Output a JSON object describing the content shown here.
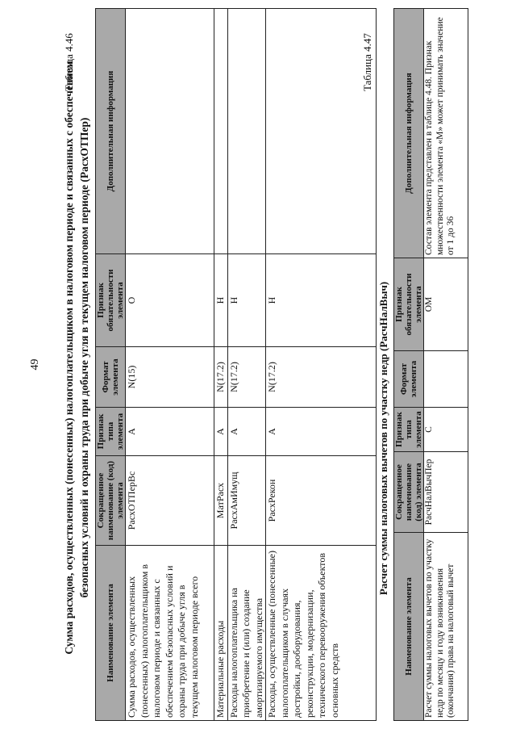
{
  "page_number": "49",
  "table1": {
    "label": "Таблица 4.46",
    "title": "Сумма расходов, осуществленных (понесенных) налогоплательщиком в налоговом периоде и связанных с обеспечением безопасных условий и охраны труда при добыче угля в текущем налоговом периоде (РасхОТПер)",
    "headers": [
      "Наименование элемента",
      "Сокращенное наименование (код) элемента",
      "Признак типа элемента",
      "Формат элемента",
      "Признак обязательности элемента",
      "Дополнительная информация"
    ],
    "rows": [
      [
        "Сумма расходов, осуществленных (понесенных) налогоплательщиком в налоговом периоде и связанных с обеспечением безопасных условий и охраны труда при добыче угля в текущем налоговом периоде всего",
        "РасхОТПерВс",
        "А",
        "N(15)",
        "О",
        ""
      ],
      [
        "Материальные расходы",
        "МатРасх",
        "А",
        "N(17.2)",
        "Н",
        ""
      ],
      [
        "Расходы налогоплательщика на приобретение и (или) создание амортизируемого имущества",
        "РасхАмИмущ",
        "А",
        "N(17.2)",
        "Н",
        ""
      ],
      [
        "Расходы, осуществленные (понесенные) налогоплательщиком в случаях достройки, дооборудования, реконструкции, модернизации, технического перевооружения объектов основных средств",
        "РасхРекон",
        "А",
        "N(17.2)",
        "Н",
        ""
      ]
    ]
  },
  "table2": {
    "label": "Таблица 4.47",
    "title": "Расчет суммы налоговых вычетов по участку недр (РасчНалВыч)",
    "headers": [
      "Наименование элемента",
      "Сокращенное наименование (код) элемента",
      "Признак типа элемента",
      "Формат элемента",
      "Признак обязательности элемента",
      "Дополнительная информация"
    ],
    "rows": [
      [
        "Расчет суммы налоговых вычетов по участку недр по месяцу и году возникновения (окончания) права на налоговый вычет",
        "РасчНалВычПер",
        "С",
        "",
        "ОМ",
        "Состав элемента представлен в таблице 4.48. Признак множественности элемента «М» может принимать значение от 1 до 36"
      ]
    ]
  }
}
